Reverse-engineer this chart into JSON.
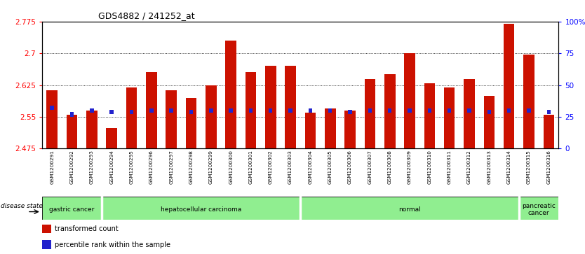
{
  "title": "GDS4882 / 241252_at",
  "samples": [
    "GSM1200291",
    "GSM1200292",
    "GSM1200293",
    "GSM1200294",
    "GSM1200295",
    "GSM1200296",
    "GSM1200297",
    "GSM1200298",
    "GSM1200299",
    "GSM1200300",
    "GSM1200301",
    "GSM1200302",
    "GSM1200303",
    "GSM1200304",
    "GSM1200305",
    "GSM1200306",
    "GSM1200307",
    "GSM1200308",
    "GSM1200309",
    "GSM1200310",
    "GSM1200311",
    "GSM1200312",
    "GSM1200313",
    "GSM1200314",
    "GSM1200315",
    "GSM1200316"
  ],
  "red_values": [
    2.613,
    2.555,
    2.565,
    2.523,
    2.62,
    2.655,
    2.612,
    2.595,
    2.625,
    2.73,
    2.655,
    2.67,
    2.67,
    2.56,
    2.57,
    2.565,
    2.64,
    2.65,
    2.7,
    2.63,
    2.62,
    2.64,
    2.6,
    2.77,
    2.697,
    2.555
  ],
  "blue_percentile": [
    32,
    27,
    30,
    29,
    29,
    30,
    30,
    29,
    30,
    30,
    30,
    30,
    30,
    30,
    30,
    29,
    30,
    30,
    30,
    30,
    30,
    30,
    29,
    30,
    30,
    29
  ],
  "ymin": 2.475,
  "ymax": 2.775,
  "yticks": [
    2.475,
    2.55,
    2.625,
    2.7,
    2.775
  ],
  "right_yticks": [
    0,
    25,
    50,
    75,
    100
  ],
  "right_ytick_labels": [
    "0",
    "25",
    "50",
    "75",
    "100%"
  ],
  "groups": [
    {
      "label": "gastric cancer",
      "start": 0,
      "end": 2
    },
    {
      "label": "hepatocellular carcinoma",
      "start": 3,
      "end": 12
    },
    {
      "label": "normal",
      "start": 13,
      "end": 23
    },
    {
      "label": "pancreatic\ncancer",
      "start": 24,
      "end": 25
    }
  ],
  "bar_color": "#CC1100",
  "marker_color": "#2222CC",
  "plot_bg": "#FFFFFF",
  "tick_bg": "#D3D3D3",
  "group_bg": "#90EE90",
  "legend_items": [
    {
      "color": "#CC1100",
      "label": "transformed count"
    },
    {
      "color": "#2222CC",
      "label": "percentile rank within the sample"
    }
  ],
  "disease_state_label": "disease state"
}
